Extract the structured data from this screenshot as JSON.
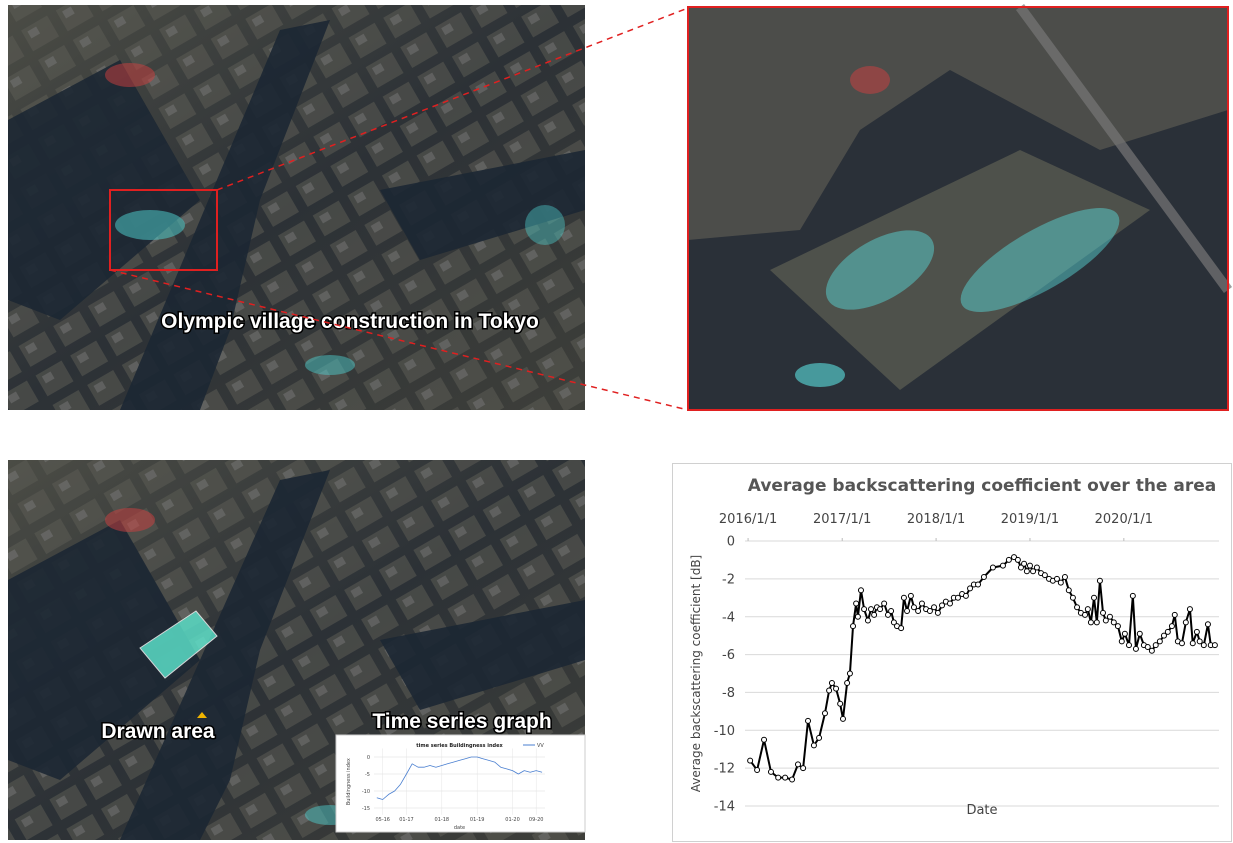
{
  "panels": {
    "top_caption": "Olympic village construction in Tokyo",
    "drawn_area": "Drawn area",
    "time_series_label": "Time series graph"
  },
  "chart_data": [
    {
      "type": "line",
      "title": "Average backscattering coefficient over the area",
      "x_label": "Date",
      "y_label": "Average backscattering coefficient [dB]",
      "color": "#000000",
      "markers": true,
      "grid": true,
      "x_axis_position": "top",
      "xlim": [
        "2015-12-20",
        "2021-01-05"
      ],
      "xticks": [
        {
          "value": "2016-01-01",
          "label": "2016/1/1"
        },
        {
          "value": "2017-01-01",
          "label": "2017/1/1"
        },
        {
          "value": "2018-01-01",
          "label": "2018/1/1"
        },
        {
          "value": "2019-01-01",
          "label": "2019/1/1"
        },
        {
          "value": "2020-01-01",
          "label": "2020/1/1"
        }
      ],
      "ylim": [
        -14,
        0
      ],
      "yticks": [
        0,
        -2,
        -4,
        -6,
        -8,
        -10,
        -12,
        -14
      ],
      "x": [
        "2016-01-09",
        "2016-02-05",
        "2016-03-03",
        "2016-03-30",
        "2016-04-27",
        "2016-05-24",
        "2016-06-20",
        "2016-07-13",
        "2016-08-02",
        "2016-08-21",
        "2016-09-13",
        "2016-10-03",
        "2016-10-26",
        "2016-11-11",
        "2016-11-22",
        "2016-12-08",
        "2016-12-24",
        "2017-01-04",
        "2017-01-20",
        "2017-01-31",
        "2017-02-12",
        "2017-02-24",
        "2017-03-03",
        "2017-03-15",
        "2017-03-27",
        "2017-04-11",
        "2017-04-23",
        "2017-05-05",
        "2017-05-16",
        "2017-05-28",
        "2017-06-13",
        "2017-06-28",
        "2017-07-10",
        "2017-07-21",
        "2017-08-02",
        "2017-08-18",
        "2017-08-29",
        "2017-09-10",
        "2017-09-25",
        "2017-10-07",
        "2017-10-23",
        "2017-11-07",
        "2017-11-23",
        "2017-12-08",
        "2017-12-24",
        "2018-01-08",
        "2018-01-24",
        "2018-02-08",
        "2018-02-24",
        "2018-03-11",
        "2018-03-27",
        "2018-04-12",
        "2018-04-27",
        "2018-05-13",
        "2018-05-28",
        "2018-06-13",
        "2018-07-06",
        "2018-08-10",
        "2018-09-18",
        "2018-10-11",
        "2018-10-31",
        "2018-11-15",
        "2018-11-27",
        "2018-12-09",
        "2018-12-20",
        "2019-01-01",
        "2019-01-13",
        "2019-01-28",
        "2019-02-13",
        "2019-02-28",
        "2019-03-16",
        "2019-03-31",
        "2019-04-16",
        "2019-05-01",
        "2019-05-17",
        "2019-06-01",
        "2019-06-17",
        "2019-07-03",
        "2019-07-18",
        "2019-08-03",
        "2019-08-14",
        "2019-08-26",
        "2019-09-07",
        "2019-09-18",
        "2019-09-30",
        "2019-10-12",
        "2019-10-23",
        "2019-11-08",
        "2019-11-23",
        "2019-12-09",
        "2019-12-24",
        "2020-01-05",
        "2020-01-21",
        "2020-02-05",
        "2020-02-17",
        "2020-03-03",
        "2020-03-19",
        "2020-04-03",
        "2020-04-19",
        "2020-05-04",
        "2020-05-20",
        "2020-06-05",
        "2020-06-20",
        "2020-07-06",
        "2020-07-17",
        "2020-07-29",
        "2020-08-14",
        "2020-08-29",
        "2020-09-14",
        "2020-09-25",
        "2020-10-11",
        "2020-10-22",
        "2020-11-07",
        "2020-11-23",
        "2020-12-04",
        "2020-12-20"
      ],
      "values": [
        -11.6,
        -12.1,
        -10.5,
        -12.2,
        -12.5,
        -12.5,
        -12.6,
        -11.8,
        -12.0,
        -9.5,
        -10.8,
        -10.4,
        -9.1,
        -7.9,
        -7.5,
        -7.8,
        -8.6,
        -9.4,
        -7.5,
        -7.0,
        -4.5,
        -3.3,
        -4.0,
        -2.6,
        -3.6,
        -4.2,
        -3.6,
        -3.9,
        -3.5,
        -3.6,
        -3.3,
        -3.9,
        -3.7,
        -4.3,
        -4.5,
        -4.6,
        -3.0,
        -3.7,
        -2.9,
        -3.5,
        -3.7,
        -3.3,
        -3.6,
        -3.7,
        -3.5,
        -3.8,
        -3.4,
        -3.2,
        -3.3,
        -3.0,
        -3.0,
        -2.8,
        -2.9,
        -2.5,
        -2.3,
        -2.3,
        -1.9,
        -1.4,
        -1.3,
        -1.0,
        -0.85,
        -1.0,
        -1.4,
        -1.2,
        -1.6,
        -1.3,
        -1.6,
        -1.4,
        -1.7,
        -1.8,
        -2.0,
        -2.1,
        -2.0,
        -2.2,
        -1.9,
        -2.6,
        -3.0,
        -3.5,
        -3.8,
        -3.9,
        -3.6,
        -4.3,
        -3.0,
        -4.3,
        -2.1,
        -3.8,
        -4.2,
        -4.0,
        -4.3,
        -4.5,
        -5.3,
        -4.9,
        -5.5,
        -2.9,
        -5.7,
        -4.9,
        -5.5,
        -5.6,
        -5.8,
        -5.5,
        -5.3,
        -5.0,
        -4.8,
        -4.5,
        -3.9,
        -5.3,
        -5.4,
        -4.3,
        -3.6,
        -5.4,
        -4.8,
        -5.3,
        -5.5,
        -4.4,
        -5.5,
        -5.5
      ]
    },
    {
      "type": "line",
      "title": "time series Buildingness index",
      "x_label": "date",
      "y_label": "Buildingness index",
      "grid": true,
      "xlim": [
        "2016-02",
        "2020-12"
      ],
      "xticks": [
        {
          "value": "2016-05",
          "label": "05-16"
        },
        {
          "value": "2017-01",
          "label": "01-17"
        },
        {
          "value": "2018-01",
          "label": "01-18"
        },
        {
          "value": "2019-01",
          "label": "01-19"
        },
        {
          "value": "2020-01",
          "label": "01-20"
        },
        {
          "value": "2020-09",
          "label": "09-20"
        }
      ],
      "ylim": [
        -17,
        2.5
      ],
      "yticks": [
        0,
        -5,
        -10,
        -15
      ],
      "x": [
        "2016-03",
        "2016-05",
        "2016-07",
        "2016-09",
        "2016-11",
        "2017-01",
        "2017-03",
        "2017-05",
        "2017-07",
        "2017-09",
        "2017-11",
        "2018-01",
        "2018-03",
        "2018-05",
        "2018-07",
        "2018-09",
        "2018-11",
        "2019-01",
        "2019-03",
        "2019-05",
        "2019-07",
        "2019-09",
        "2019-11",
        "2020-01",
        "2020-03",
        "2020-05",
        "2020-07",
        "2020-09",
        "2020-11"
      ],
      "series": [
        {
          "name": "VV",
          "color": "#4a7fd0",
          "values": [
            -12,
            -12.5,
            -11,
            -10,
            -8,
            -5,
            -2,
            -3,
            -3,
            -2.5,
            -3,
            -2.5,
            -2,
            -1.5,
            -1,
            -0.5,
            0,
            0,
            -0.5,
            -1,
            -1.5,
            -3,
            -3.5,
            -4,
            -5,
            -4,
            -4.5,
            -4,
            -4.5
          ]
        }
      ]
    }
  ]
}
